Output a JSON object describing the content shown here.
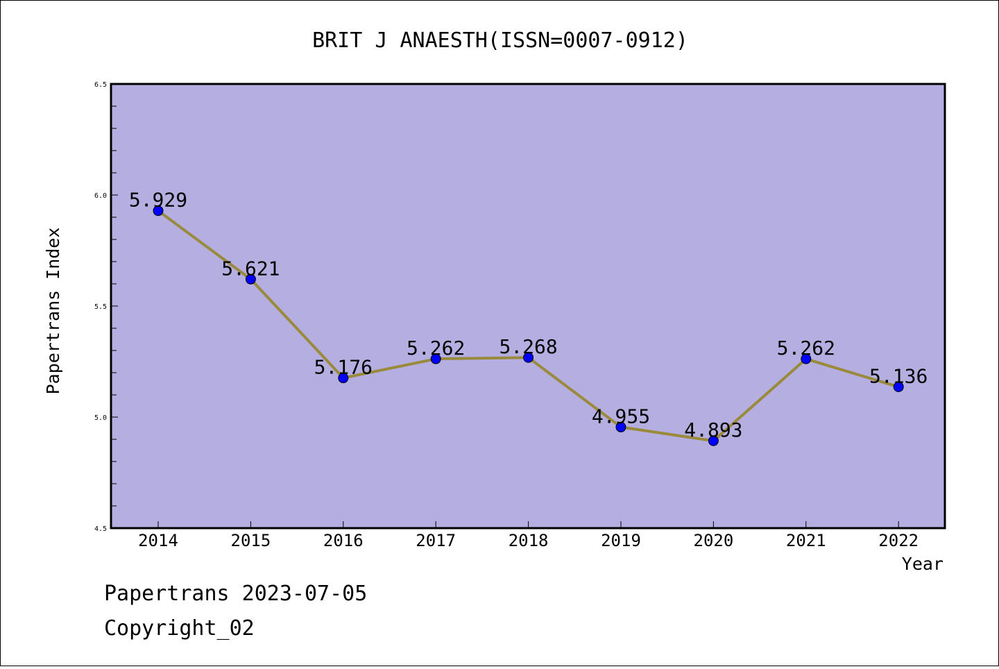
{
  "chart_data": {
    "type": "line",
    "title": "BRIT J ANAESTH(ISSN=0007-0912)",
    "xlabel": "Year",
    "ylabel": "Papertrans Index",
    "categories": [
      "2014",
      "2015",
      "2016",
      "2017",
      "2018",
      "2019",
      "2020",
      "2021",
      "2022"
    ],
    "series": [
      {
        "values": [
          5.929,
          5.621,
          5.176,
          5.262,
          5.268,
          4.955,
          4.893,
          5.262,
          5.136
        ],
        "labels": [
          "5.929",
          "5.621",
          "5.176",
          "5.262",
          "5.268",
          "4.955",
          "4.893",
          "5.262",
          "5.136"
        ]
      }
    ],
    "ylim": [
      4.5,
      6.5
    ],
    "yticks": [
      "4.5",
      "5.0",
      "5.5",
      "6.0",
      "6.5"
    ],
    "grid": false,
    "colors": {
      "plot_background": "#b4aee1",
      "line": "#9a8a3c",
      "marker": "#0000ff"
    }
  },
  "footer": {
    "source": "Papertrans 2023-07-05",
    "copyright": "Copyright_02"
  }
}
